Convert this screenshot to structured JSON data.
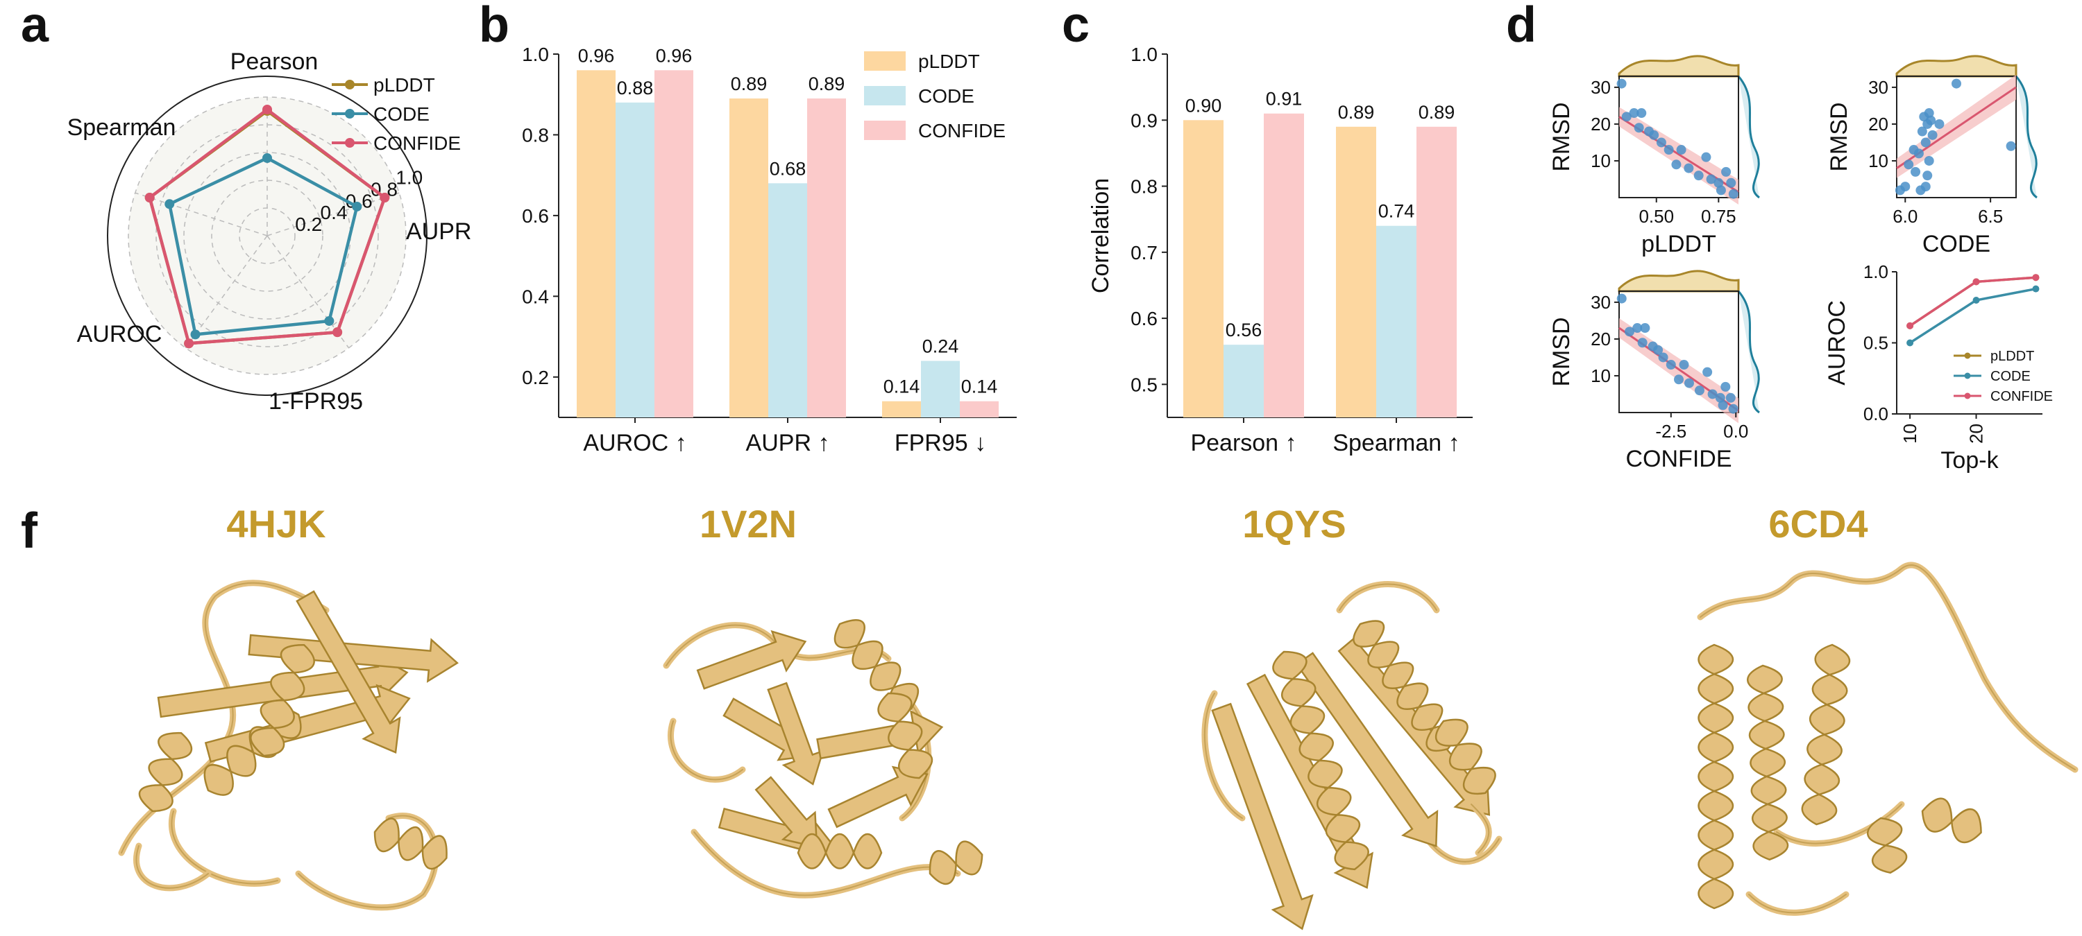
{
  "panels": {
    "a": "a",
    "b": "b",
    "c": "c",
    "d": "d",
    "f": "f"
  },
  "colors": {
    "pLDDT": "#a8862a",
    "CODE": "#3a8ea6",
    "CONFIDE": "#d9566f",
    "bar_pLDDT": "#fdd7a0",
    "bar_CODE": "#c6e6ee",
    "bar_CONFIDE": "#fbcaca",
    "protein": "#e4c07e",
    "protein_edge": "#a8842f",
    "scatter_point": "#4a8fc8"
  },
  "chart_data": [
    {
      "id": "radar",
      "type": "radar",
      "axes": [
        "Pearson",
        "AUPR",
        "1-FPR95",
        "AUROC",
        "Spearman"
      ],
      "rticks": [
        "0.2",
        "0.4",
        "0.6",
        "0.8",
        "1.0"
      ],
      "rlim": [
        0,
        1
      ],
      "series": [
        {
          "name": "pLDDT",
          "values": [
            0.9,
            0.89,
            0.86,
            0.96,
            0.89
          ]
        },
        {
          "name": "CODE",
          "values": [
            0.56,
            0.68,
            0.76,
            0.88,
            0.74
          ]
        },
        {
          "name": "CONFIDE",
          "values": [
            0.91,
            0.89,
            0.86,
            0.96,
            0.89
          ]
        }
      ],
      "legend": [
        "pLDDT",
        "CODE",
        "CONFIDE"
      ]
    },
    {
      "id": "bar_b",
      "type": "bar",
      "categories": [
        "AUROC ↑",
        "AUPR ↑",
        "FPR95 ↓"
      ],
      "series": [
        {
          "name": "pLDDT",
          "values": [
            0.96,
            0.89,
            0.14
          ],
          "labels": [
            "0.96",
            "0.89",
            "0.14"
          ]
        },
        {
          "name": "CODE",
          "values": [
            0.88,
            0.68,
            0.24
          ],
          "labels": [
            "0.88",
            "0.68",
            "0.24"
          ]
        },
        {
          "name": "CONFIDE",
          "values": [
            0.96,
            0.89,
            0.14
          ],
          "labels": [
            "0.96",
            "0.89",
            "0.14"
          ]
        }
      ],
      "ylim": [
        0.1,
        1.0
      ],
      "yticks": [
        "0.2",
        "0.4",
        "0.6",
        "0.8",
        "1.0"
      ],
      "ytick_values": [
        0.2,
        0.4,
        0.6,
        0.8,
        1.0
      ],
      "legend": [
        "pLDDT",
        "CODE",
        "CONFIDE"
      ],
      "legend_position": "top-right"
    },
    {
      "id": "bar_c",
      "type": "bar",
      "categories": [
        "Pearson ↑",
        "Spearman ↑"
      ],
      "series": [
        {
          "name": "pLDDT",
          "values": [
            0.9,
            0.89
          ],
          "labels": [
            "0.90",
            "0.89"
          ]
        },
        {
          "name": "CODE",
          "values": [
            0.56,
            0.74
          ],
          "labels": [
            "0.56",
            "0.74"
          ]
        },
        {
          "name": "CONFIDE",
          "values": [
            0.91,
            0.89
          ],
          "labels": [
            "0.91",
            "0.89"
          ]
        }
      ],
      "ylabel": "Correlation",
      "ylim": [
        0.45,
        1.0
      ],
      "yticks": [
        "0.5",
        "0.6",
        "0.7",
        "0.8",
        "0.9",
        "1.0"
      ],
      "ytick_values": [
        0.5,
        0.6,
        0.7,
        0.8,
        0.9,
        1.0
      ]
    },
    {
      "id": "scatter_plddt",
      "type": "scatter",
      "xlabel": "pLDDT",
      "ylabel": "RMSD",
      "xlim": [
        0.35,
        0.83
      ],
      "ylim": [
        0,
        33
      ],
      "xticks": [
        "0.50",
        "0.75"
      ],
      "xtick_values": [
        0.5,
        0.75
      ],
      "yticks": [
        "10",
        "20",
        "30"
      ],
      "ytick_values": [
        10,
        20,
        30
      ],
      "points": [
        [
          0.36,
          31
        ],
        [
          0.38,
          22
        ],
        [
          0.41,
          23
        ],
        [
          0.44,
          23
        ],
        [
          0.43,
          19
        ],
        [
          0.47,
          18
        ],
        [
          0.49,
          17
        ],
        [
          0.52,
          15
        ],
        [
          0.55,
          13
        ],
        [
          0.58,
          9
        ],
        [
          0.6,
          13
        ],
        [
          0.63,
          8
        ],
        [
          0.67,
          6
        ],
        [
          0.7,
          11
        ],
        [
          0.72,
          5
        ],
        [
          0.75,
          4
        ],
        [
          0.78,
          7
        ],
        [
          0.8,
          4
        ],
        [
          0.76,
          2
        ],
        [
          0.81,
          1
        ]
      ],
      "fit": [
        [
          0.35,
          22
        ],
        [
          0.83,
          1.5
        ]
      ],
      "marginal": "y-and-x"
    },
    {
      "id": "scatter_code",
      "type": "scatter",
      "xlabel": "CODE",
      "ylabel": "RMSD",
      "xlim": [
        5.95,
        6.65
      ],
      "ylim": [
        0,
        33
      ],
      "xticks": [
        "6.0",
        "6.5"
      ],
      "xtick_values": [
        6.0,
        6.5
      ],
      "yticks": [
        "10",
        "20",
        "30"
      ],
      "ytick_values": [
        10,
        20,
        30
      ],
      "points": [
        [
          5.97,
          2
        ],
        [
          6.0,
          3
        ],
        [
          6.02,
          9
        ],
        [
          6.05,
          13
        ],
        [
          6.08,
          12
        ],
        [
          6.1,
          18
        ],
        [
          6.11,
          22
        ],
        [
          6.12,
          15
        ],
        [
          6.13,
          20
        ],
        [
          6.14,
          23
        ],
        [
          6.15,
          21
        ],
        [
          6.16,
          17
        ],
        [
          6.14,
          10
        ],
        [
          6.13,
          6
        ],
        [
          6.12,
          3
        ],
        [
          6.2,
          20
        ],
        [
          6.3,
          31
        ],
        [
          6.62,
          14
        ],
        [
          6.09,
          2
        ],
        [
          6.06,
          7
        ]
      ],
      "fit": [
        [
          5.95,
          8
        ],
        [
          6.65,
          30
        ]
      ],
      "marginal": "y-and-x"
    },
    {
      "id": "scatter_confide",
      "type": "scatter",
      "xlabel": "CONFIDE",
      "ylabel": "RMSD",
      "xlim": [
        -4.5,
        0.1
      ],
      "ylim": [
        0,
        33
      ],
      "xticks": [
        "-2.5",
        "0.0"
      ],
      "xtick_values": [
        -2.5,
        0.0
      ],
      "yticks": [
        "10",
        "20",
        "30"
      ],
      "ytick_values": [
        10,
        20,
        30
      ],
      "points": [
        [
          -4.4,
          31
        ],
        [
          -4.1,
          22
        ],
        [
          -3.8,
          23
        ],
        [
          -3.5,
          23
        ],
        [
          -3.6,
          19
        ],
        [
          -3.2,
          18
        ],
        [
          -3.0,
          17
        ],
        [
          -2.8,
          15
        ],
        [
          -2.5,
          13
        ],
        [
          -2.2,
          9
        ],
        [
          -2.0,
          13
        ],
        [
          -1.8,
          8
        ],
        [
          -1.4,
          6
        ],
        [
          -1.1,
          11
        ],
        [
          -0.9,
          5
        ],
        [
          -0.6,
          4
        ],
        [
          -0.4,
          7
        ],
        [
          -0.2,
          4
        ],
        [
          -0.5,
          2
        ],
        [
          -0.1,
          1
        ]
      ],
      "fit": [
        [
          -4.5,
          23
        ],
        [
          0.1,
          0.5
        ]
      ],
      "marginal": "y-and-x"
    },
    {
      "id": "topk_line",
      "type": "line",
      "xlabel": "Top-k",
      "ylabel": "AUROC",
      "xlim": [
        8,
        30
      ],
      "ylim": [
        0,
        1.0
      ],
      "xticks": [
        "10",
        "20"
      ],
      "xtick_values": [
        10,
        20
      ],
      "yticks": [
        "0.0",
        "0.5",
        "1.0"
      ],
      "ytick_values": [
        0.0,
        0.5,
        1.0
      ],
      "x": [
        10,
        20,
        29
      ],
      "series": [
        {
          "name": "pLDDT",
          "values": [
            0.62,
            0.93,
            0.96
          ]
        },
        {
          "name": "CODE",
          "values": [
            0.5,
            0.8,
            0.88
          ]
        },
        {
          "name": "CONFIDE",
          "values": [
            0.62,
            0.93,
            0.96
          ]
        }
      ],
      "legend": [
        "pLDDT",
        "CODE",
        "CONFIDE"
      ],
      "legend_position": "bottom-right"
    }
  ],
  "proteins": [
    {
      "title": "4HJK"
    },
    {
      "title": "1V2N"
    },
    {
      "title": "1QYS"
    },
    {
      "title": "6CD4"
    }
  ]
}
